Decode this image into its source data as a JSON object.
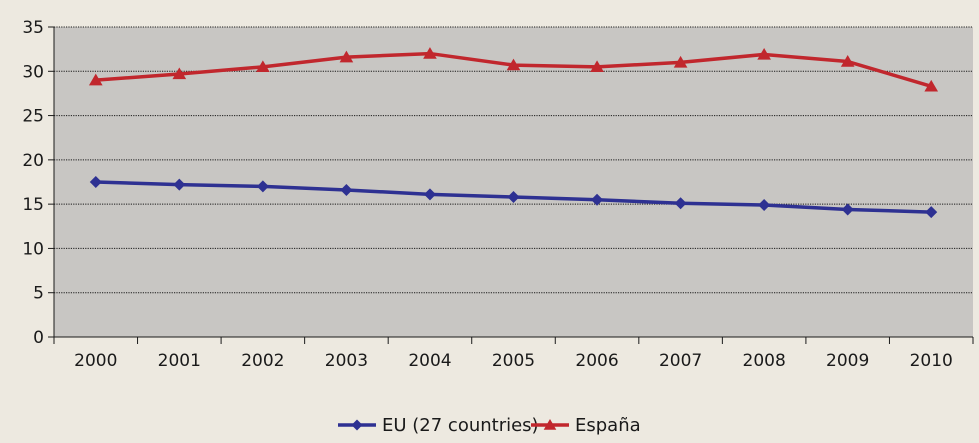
{
  "chart_data": {
    "type": "line",
    "title": "",
    "xlabel": "",
    "ylabel": "",
    "categories": [
      "2000",
      "2001",
      "2002",
      "2003",
      "2004",
      "2005",
      "2006",
      "2007",
      "2008",
      "2009",
      "2010"
    ],
    "ylim": [
      0,
      35
    ],
    "yticks": [
      0,
      5,
      10,
      15,
      20,
      25,
      30,
      35
    ],
    "grid": true,
    "legend_position": "bottom",
    "series": [
      {
        "name": "EU (27 countries)",
        "marker": "diamond",
        "color": "#2e3192",
        "values": [
          17.5,
          17.2,
          17.0,
          16.6,
          16.1,
          15.8,
          15.5,
          15.1,
          14.9,
          14.4,
          14.1
        ]
      },
      {
        "name": "España",
        "marker": "triangle",
        "color": "#c1272d",
        "values": [
          29.0,
          29.7,
          30.5,
          31.6,
          32.0,
          30.7,
          30.5,
          31.0,
          31.9,
          31.1,
          28.3
        ]
      }
    ]
  },
  "colors": {
    "page_background": "#ede9e0",
    "plot_background": "#c8c6c3",
    "gridline": "#1a1a1a",
    "axis": "#1a1a1a"
  }
}
